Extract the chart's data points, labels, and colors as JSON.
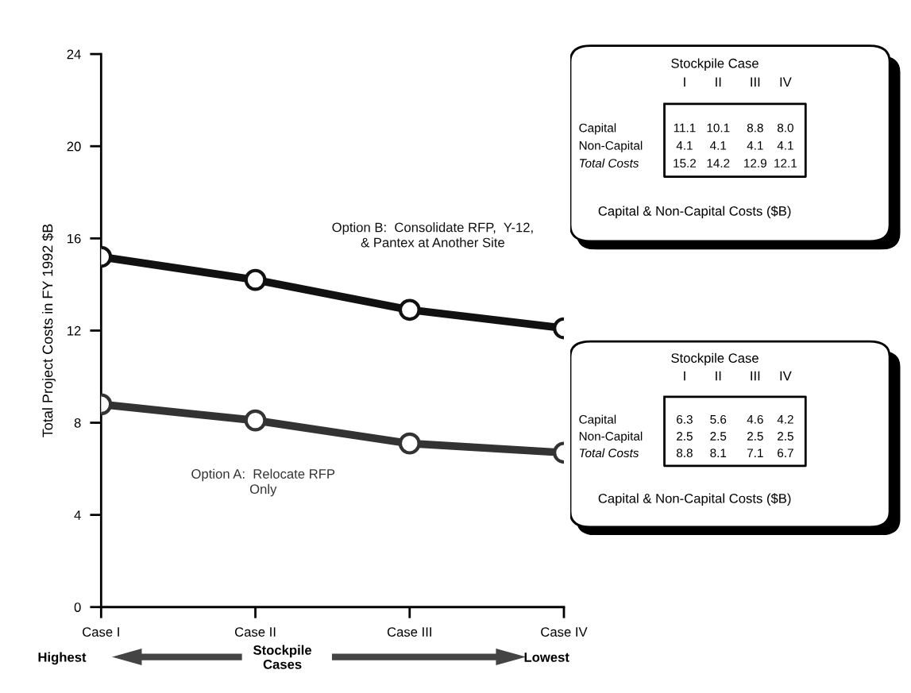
{
  "chart_data": [
    {
      "type": "line",
      "ylabel": "Total Project Costs in FY 1992 $B",
      "categories": [
        "Case I",
        "Case II",
        "Case III",
        "Case IV"
      ],
      "series": [
        {
          "name": "Option B:  Consolidate RFP,  Y-12,\n& Pantex at Another Site",
          "color": "#111111",
          "values": [
            15.2,
            14.2,
            12.9,
            12.1
          ]
        },
        {
          "name": "Option A:  Relocate RFP\nOnly",
          "color": "#333333",
          "values": [
            8.8,
            8.1,
            7.1,
            6.7
          ]
        }
      ],
      "ylim": [
        0,
        24
      ],
      "yticks": [
        0,
        4,
        8,
        12,
        16,
        20,
        24
      ],
      "grid": false,
      "legend": false,
      "marker": "circle",
      "line_style": "solid",
      "annotations": [
        "Highest",
        "Stockpile\nCases",
        "Lowest"
      ]
    },
    {
      "type": "other",
      "title": "Stockpile Case",
      "categories": [
        "I",
        "II",
        "III",
        "IV"
      ],
      "y_categories": [
        "Capital",
        "Non-Capital",
        "Total Costs"
      ],
      "cell_labels": [
        [
          "11.1",
          "10.1",
          "8.8",
          "8.0"
        ],
        [
          "4.1",
          "4.1",
          "4.1",
          "4.1"
        ],
        [
          "15.2",
          "14.2",
          "12.9",
          "12.1"
        ]
      ],
      "subtitle": "Capital & Non-Capital Costs ($B)"
    },
    {
      "type": "other",
      "title": "Stockpile Case",
      "categories": [
        "I",
        "II",
        "III",
        "IV"
      ],
      "y_categories": [
        "Capital",
        "Non-Capital",
        "Total Costs"
      ],
      "cell_labels": [
        [
          "6.3",
          "5.6",
          "4.6",
          "4.2"
        ],
        [
          "2.5",
          "2.5",
          "2.5",
          "2.5"
        ],
        [
          "8.8",
          "8.1",
          "7.1",
          "6.7"
        ]
      ],
      "subtitle": "Capital & Non-Capital Costs ($B)"
    }
  ]
}
